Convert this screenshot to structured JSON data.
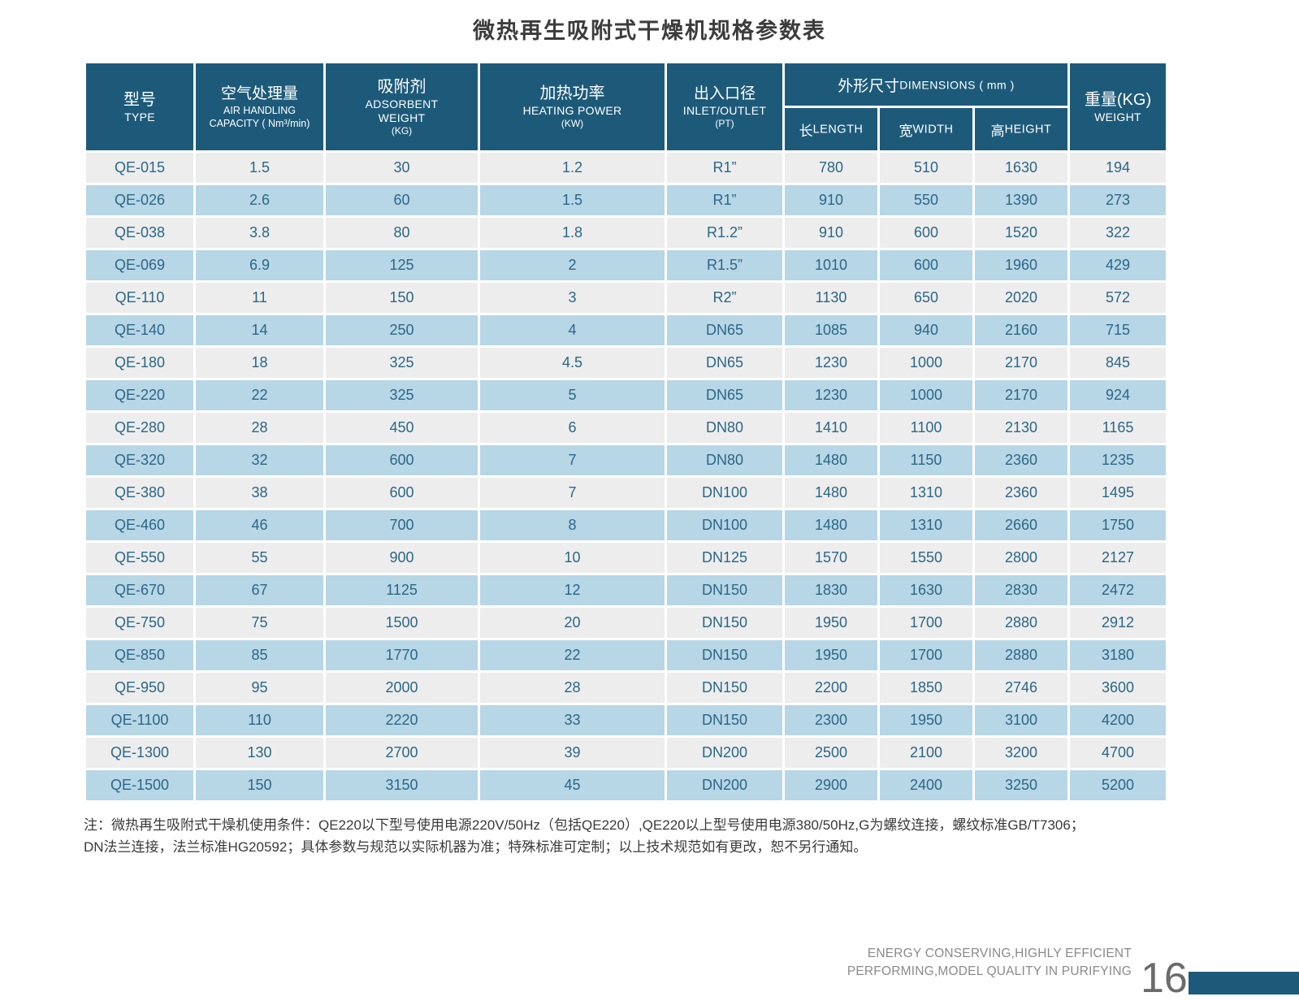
{
  "page": {
    "title": "微热再生吸附式干燥机规格参数表",
    "note_line1": "注：微热再生吸附式干燥机使用条件：QE220以下型号使用电源220V/50Hz（包括QE220）,QE220以上型号使用电源380/50Hz,G为螺纹连接，螺纹标准GB/T7306；",
    "note_line2": "DN法兰连接，法兰标准HG20592；具体参数与规范以实际机器为准；特殊标准可定制；以上技术规范如有更改，恕不另行通知。",
    "footer_line1": "ENERGY CONSERVING,HIGHLY EFFICIENT",
    "footer_line2": "PERFORMING,MODEL QUALITY IN PURIFYING",
    "page_number": "16"
  },
  "colors": {
    "header_bg": "#1d5a7a",
    "row_blue": "#b7d6e6",
    "row_gray": "#ededed",
    "cell_text": "#2b6787",
    "footer_bar": "#1d5a7a"
  },
  "table": {
    "headers": {
      "type_cn": "型号",
      "type_en": "TYPE",
      "capacity_cn": "空气处理量",
      "capacity_en1": "AIR HANDLING",
      "capacity_en2": "CAPACITY ( Nm³/min)",
      "adsorbent_cn": "吸附剂",
      "adsorbent_en1": "ADSORBENT",
      "adsorbent_en2": "WEIGHT",
      "adsorbent_unit": "(KG)",
      "heating_cn": "加热功率",
      "heating_en": "HEATING POWER",
      "heating_unit": "(KW)",
      "inlet_cn": "出入口径",
      "inlet_en": "INLET/OUTLET",
      "inlet_unit": "(PT)",
      "dimensions_cn": "外形尺寸",
      "dimensions_en": "DIMENSIONS ( mm )",
      "length_cn": "长",
      "length_en": "LENGTH",
      "width_cn": "宽",
      "width_en": "WIDTH",
      "height_cn": "高",
      "height_en": "HEIGHT",
      "weight_cn": "重量(KG)",
      "weight_en": "WEIGHT"
    },
    "rows": [
      [
        "QE-015",
        "1.5",
        "30",
        "1.2",
        "R1”",
        "780",
        "510",
        "1630",
        "194"
      ],
      [
        "QE-026",
        "2.6",
        "60",
        "1.5",
        "R1”",
        "910",
        "550",
        "1390",
        "273"
      ],
      [
        "QE-038",
        "3.8",
        "80",
        "1.8",
        "R1.2”",
        "910",
        "600",
        "1520",
        "322"
      ],
      [
        "QE-069",
        "6.9",
        "125",
        "2",
        "R1.5”",
        "1010",
        "600",
        "1960",
        "429"
      ],
      [
        "QE-110",
        "11",
        "150",
        "3",
        "R2”",
        "1130",
        "650",
        "2020",
        "572"
      ],
      [
        "QE-140",
        "14",
        "250",
        "4",
        "DN65",
        "1085",
        "940",
        "2160",
        "715"
      ],
      [
        "QE-180",
        "18",
        "325",
        "4.5",
        "DN65",
        "1230",
        "1000",
        "2170",
        "845"
      ],
      [
        "QE-220",
        "22",
        "325",
        "5",
        "DN65",
        "1230",
        "1000",
        "2170",
        "924"
      ],
      [
        "QE-280",
        "28",
        "450",
        "6",
        "DN80",
        "1410",
        "1100",
        "2130",
        "1165"
      ],
      [
        "QE-320",
        "32",
        "600",
        "7",
        "DN80",
        "1480",
        "1150",
        "2360",
        "1235"
      ],
      [
        "QE-380",
        "38",
        "600",
        "7",
        "DN100",
        "1480",
        "1310",
        "2360",
        "1495"
      ],
      [
        "QE-460",
        "46",
        "700",
        "8",
        "DN100",
        "1480",
        "1310",
        "2660",
        "1750"
      ],
      [
        "QE-550",
        "55",
        "900",
        "10",
        "DN125",
        "1570",
        "1550",
        "2800",
        "2127"
      ],
      [
        "QE-670",
        "67",
        "1125",
        "12",
        "DN150",
        "1830",
        "1630",
        "2830",
        "2472"
      ],
      [
        "QE-750",
        "75",
        "1500",
        "20",
        "DN150",
        "1950",
        "1700",
        "2880",
        "2912"
      ],
      [
        "QE-850",
        "85",
        "1770",
        "22",
        "DN150",
        "1950",
        "1700",
        "2880",
        "3180"
      ],
      [
        "QE-950",
        "95",
        "2000",
        "28",
        "DN150",
        "2200",
        "1850",
        "2746",
        "3600"
      ],
      [
        "QE-1100",
        "110",
        "2220",
        "33",
        "DN150",
        "2300",
        "1950",
        "3100",
        "4200"
      ],
      [
        "QE-1300",
        "130",
        "2700",
        "39",
        "DN200",
        "2500",
        "2100",
        "3200",
        "4700"
      ],
      [
        "QE-1500",
        "150",
        "3150",
        "45",
        "DN200",
        "2900",
        "2400",
        "3250",
        "5200"
      ]
    ]
  }
}
